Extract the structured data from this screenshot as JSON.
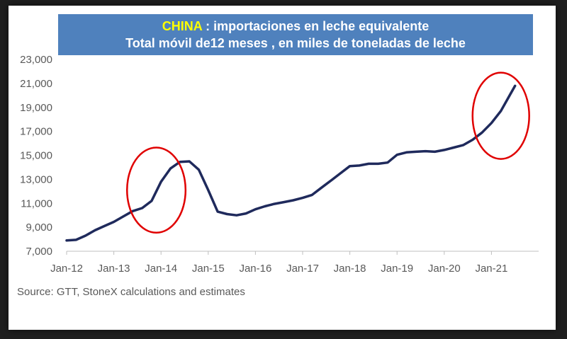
{
  "title": {
    "highlight": "CHINA",
    "line1_rest": " : importaciones en leche equivalente",
    "line2": "Total móvil de12 meses , en miles de toneladas de leche"
  },
  "source": "Source: GTT, StoneX calculations and estimates",
  "colors": {
    "line": "#1f2a5c",
    "title_bg": "#4f81bd",
    "highlight": "#ffff00",
    "circle": "#e00000"
  },
  "chart_data": {
    "type": "line",
    "x_tick_labels": [
      "Jan-12",
      "Jan-13",
      "Jan-14",
      "Jan-15",
      "Jan-16",
      "Jan-17",
      "Jan-18",
      "Jan-19",
      "Jan-20",
      "Jan-21"
    ],
    "x_tick_values": [
      2012,
      2013,
      2014,
      2015,
      2016,
      2017,
      2018,
      2019,
      2020,
      2021
    ],
    "xlim": [
      2012,
      2022
    ],
    "y_tick_labels": [
      "7,000",
      "9,000",
      "11,000",
      "13,000",
      "15,000",
      "17,000",
      "19,000",
      "21,000",
      "23,000"
    ],
    "y_tick_values": [
      7000,
      9000,
      11000,
      13000,
      15000,
      17000,
      19000,
      21000,
      23000
    ],
    "ylim": [
      7000,
      23000
    ],
    "series": [
      {
        "x": [
          2012.0,
          2012.2,
          2012.4,
          2012.6,
          2012.8,
          2013.0,
          2013.2,
          2013.4,
          2013.6,
          2013.8,
          2014.0,
          2014.2,
          2014.4,
          2014.6,
          2014.8,
          2015.0,
          2015.2,
          2015.4,
          2015.6,
          2015.8,
          2016.0,
          2016.2,
          2016.4,
          2016.6,
          2016.8,
          2017.0,
          2017.2,
          2017.4,
          2017.6,
          2017.8,
          2018.0,
          2018.2,
          2018.4,
          2018.6,
          2018.8,
          2019.0,
          2019.2,
          2019.4,
          2019.6,
          2019.8,
          2020.0,
          2020.2,
          2020.4,
          2020.6,
          2020.8,
          2021.0,
          2021.2,
          2021.4,
          2021.5
        ],
        "y": [
          7900,
          7950,
          8300,
          8750,
          9100,
          9450,
          9900,
          10350,
          10600,
          11200,
          12800,
          13900,
          14450,
          14500,
          13800,
          12100,
          10300,
          10100,
          10000,
          10150,
          10500,
          10750,
          10950,
          11100,
          11250,
          11450,
          11700,
          12300,
          12900,
          13500,
          14100,
          14150,
          14300,
          14300,
          14400,
          15050,
          15250,
          15300,
          15350,
          15300,
          15450,
          15650,
          15850,
          16300,
          16900,
          17700,
          18700,
          20100,
          20800
        ]
      }
    ],
    "annotations": [
      {
        "type": "ellipse",
        "cx": 2013.9,
        "cy": 12100,
        "rx": 0.62,
        "ry": 3550
      },
      {
        "type": "ellipse",
        "cx": 2021.2,
        "cy": 18300,
        "rx": 0.6,
        "ry": 3600
      }
    ]
  }
}
